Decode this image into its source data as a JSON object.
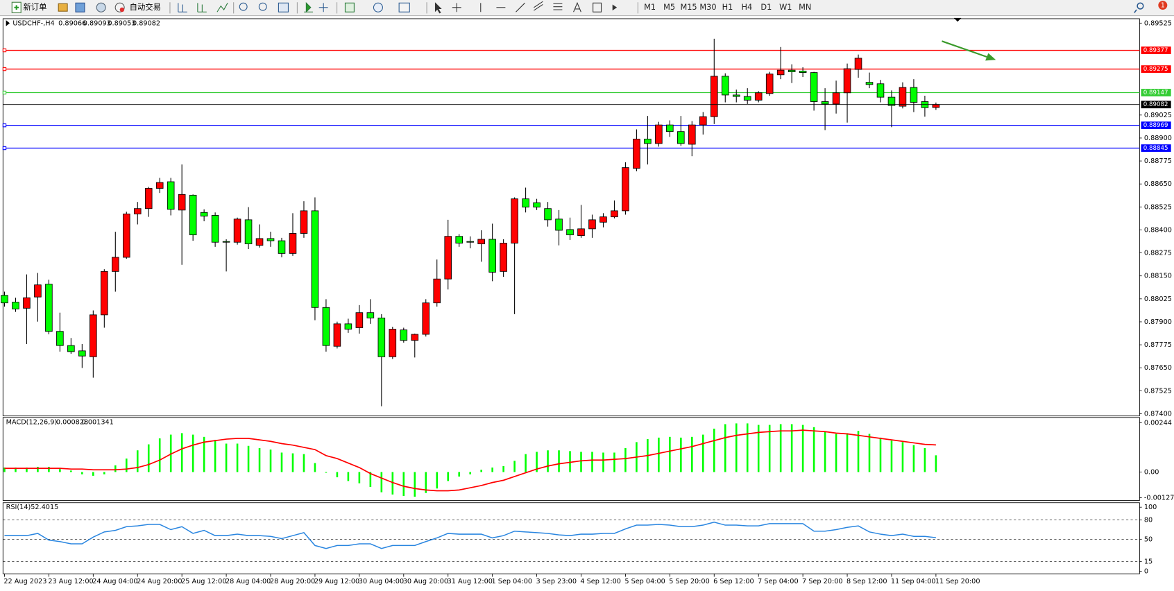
{
  "toolbar": {
    "buttons": [
      "新订单",
      "自动交易"
    ],
    "timeframes": [
      "M1",
      "M5",
      "M15",
      "M30",
      "H1",
      "H4",
      "D1",
      "W1",
      "MN"
    ],
    "notifications": "1"
  },
  "chart_data": [
    {
      "type": "candlestick",
      "title": "USDCHF-,H4",
      "up_color": "#ff0000",
      "down_color": "#00ff00",
      "ylim": [
        0.87388,
        0.89549
      ],
      "yticks": [
        0.89525,
        0.89025,
        {
          "value": 0.889,
          "label": "0.88900"
        },
        0.88775,
        {
          "value": 0.8865,
          "label": "0.88650"
        },
        0.88525,
        {
          "value": 0.884,
          "label": "0.88400"
        },
        0.88275,
        {
          "value": 0.8815,
          "label": "0.88150"
        },
        0.88025,
        {
          "value": 0.879,
          "label": "0.87900"
        },
        0.87775,
        {
          "value": 0.8765,
          "label": "0.87650"
        },
        0.87525,
        {
          "value": 0.874,
          "label": "0.87400"
        }
      ],
      "hlines": [
        {
          "value": 0.89377,
          "color": "#ff0000"
        },
        {
          "value": 0.89275,
          "color": "#ff0000"
        },
        {
          "value": 0.89147,
          "color": "#33cc33"
        },
        {
          "value": 0.88969,
          "color": "#0000ff"
        },
        {
          "value": 0.88845,
          "color": "#0000ff"
        }
      ],
      "categories": [
        "22 Aug 2023",
        null,
        null,
        null,
        "23 Aug 12:00",
        null,
        null,
        null,
        "24 Aug 04:00",
        null,
        null,
        null,
        "24 Aug 20:00",
        null,
        null,
        null,
        "25 Aug 12:00",
        null,
        null,
        null,
        "28 Aug 04:00",
        null,
        null,
        null,
        "28 Aug 20:00",
        null,
        null,
        null,
        "29 Aug 12:00",
        null,
        null,
        null,
        "30 Aug 04:00",
        null,
        null,
        null,
        "30 Aug 20:00",
        null,
        null,
        null,
        "31 Aug 12:00",
        null,
        null,
        null,
        "1 Sep 04:00",
        null,
        null,
        null,
        "3 Sep 23:00",
        null,
        null,
        null,
        "4 Sep 12:00",
        null,
        null,
        null,
        "5 Sep 04:00",
        null,
        null,
        null,
        "5 Sep 20:00",
        null,
        null,
        null,
        "6 Sep 12:00",
        null,
        null,
        null,
        "7 Sep 04:00",
        null,
        null,
        null,
        "7 Sep 20:00",
        null,
        null,
        null,
        "8 Sep 12:00",
        null,
        null,
        null,
        "11 Sep 04:00",
        null,
        null,
        null,
        "11 Sep 20:00"
      ],
      "ohlc": [
        [
          0.88044,
          0.88064,
          0.87983,
          0.88003
        ],
        [
          0.88007,
          0.88031,
          0.87954,
          0.8797
        ],
        [
          0.87974,
          0.88158,
          0.87779,
          0.88031
        ],
        [
          0.88035,
          0.88166,
          0.87901,
          0.88101
        ],
        [
          0.88105,
          0.88129,
          0.87832,
          0.87848
        ],
        [
          0.87848,
          0.8795,
          0.87738,
          0.87771
        ],
        [
          0.87771,
          0.87812,
          0.87726,
          0.87738
        ],
        [
          0.87742,
          0.87779,
          0.87649,
          0.87714
        ],
        [
          0.8771,
          0.87962,
          0.87596,
          0.87938
        ],
        [
          0.87938,
          0.88186,
          0.87868,
          0.88174
        ],
        [
          0.88174,
          0.8839,
          0.88064,
          0.88251
        ],
        [
          0.88251,
          0.88499,
          0.88243,
          0.88487
        ],
        [
          0.88487,
          0.88552,
          0.8843,
          0.88516
        ],
        [
          0.88516,
          0.88634,
          0.88471,
          0.88626
        ],
        [
          0.88626,
          0.88683,
          0.88601,
          0.88658
        ],
        [
          0.88662,
          0.88683,
          0.88479,
          0.88512
        ],
        [
          0.88508,
          0.88756,
          0.8821,
          0.88593
        ],
        [
          0.88589,
          0.88593,
          0.88341,
          0.88373
        ],
        [
          0.88495,
          0.88512,
          0.88447,
          0.88475
        ],
        [
          0.88479,
          0.88495,
          0.88308,
          0.88333
        ],
        [
          0.88337,
          0.88349,
          0.88174,
          0.88333
        ],
        [
          0.88333,
          0.88467,
          0.8832,
          0.88459
        ],
        [
          0.88455,
          0.88524,
          0.88296,
          0.88324
        ],
        [
          0.88316,
          0.8843,
          0.88304,
          0.88353
        ],
        [
          0.88353,
          0.8839,
          0.88308,
          0.88341
        ],
        [
          0.88341,
          0.88357,
          0.88251,
          0.88272
        ],
        [
          0.88272,
          0.88491,
          0.88259,
          0.88381
        ],
        [
          0.88381,
          0.88556,
          0.88357,
          0.88504
        ],
        [
          0.88504,
          0.88577,
          0.87909,
          0.87978
        ],
        [
          0.87978,
          0.88023,
          0.87738,
          0.87771
        ],
        [
          0.87767,
          0.87901,
          0.87755,
          0.87889
        ],
        [
          0.87889,
          0.87917,
          0.8784,
          0.8786
        ],
        [
          0.87868,
          0.87991,
          0.87836,
          0.8795
        ],
        [
          0.8795,
          0.88023,
          0.87889,
          0.87921
        ],
        [
          0.87921,
          0.87942,
          0.87441,
          0.8771
        ],
        [
          0.8771,
          0.87873,
          0.87698,
          0.8786
        ],
        [
          0.87856,
          0.87868,
          0.87787,
          0.87799
        ],
        [
          0.87799,
          0.87836,
          0.87706,
          0.87832
        ],
        [
          0.87832,
          0.88023,
          0.8782,
          0.88003
        ],
        [
          0.88003,
          0.88239,
          0.87983,
          0.88133
        ],
        [
          0.88133,
          0.88455,
          0.88076,
          0.88365
        ],
        [
          0.88365,
          0.88377,
          0.88308,
          0.88328
        ],
        [
          0.88337,
          0.88365,
          0.883,
          0.88333
        ],
        [
          0.88324,
          0.88398,
          0.88227,
          0.88349
        ],
        [
          0.88349,
          0.88434,
          0.88121,
          0.8817
        ],
        [
          0.88174,
          0.88349,
          0.88145,
          0.88328
        ],
        [
          0.88328,
          0.88577,
          0.87942,
          0.88569
        ],
        [
          0.88569,
          0.8863,
          0.88495,
          0.88524
        ],
        [
          0.88548,
          0.88569,
          0.88508,
          0.88524
        ],
        [
          0.88516,
          0.88552,
          0.88418,
          0.88455
        ],
        [
          0.88459,
          0.88508,
          0.88316,
          0.88398
        ],
        [
          0.88402,
          0.88467,
          0.88345,
          0.88373
        ],
        [
          0.88369,
          0.88536,
          0.88357,
          0.88406
        ],
        [
          0.88406,
          0.88483,
          0.88357,
          0.88455
        ],
        [
          0.88442,
          0.88491,
          0.88414,
          0.88471
        ],
        [
          0.88471,
          0.8856,
          0.88463,
          0.88504
        ],
        [
          0.88504,
          0.88768,
          0.88483,
          0.88739
        ],
        [
          0.88735,
          0.88947,
          0.88719,
          0.88894
        ],
        [
          0.88894,
          0.8902,
          0.88756,
          0.8887
        ],
        [
          0.8887,
          0.88988,
          0.88853,
          0.88971
        ],
        [
          0.88971,
          0.88996,
          0.88906,
          0.88935
        ],
        [
          0.88935,
          0.8902,
          0.88857,
          0.8887
        ],
        [
          0.88866,
          0.88992,
          0.88801,
          0.88971
        ],
        [
          0.88971,
          0.89041,
          0.88919,
          0.89016
        ],
        [
          0.89016,
          0.8944,
          0.88976,
          0.89236
        ],
        [
          0.89236,
          0.89252,
          0.89094,
          0.89134
        ],
        [
          0.89134,
          0.89163,
          0.89094,
          0.89126
        ],
        [
          0.89126,
          0.89171,
          0.89085,
          0.89106
        ],
        [
          0.89106,
          0.89155,
          0.89094,
          0.89146
        ],
        [
          0.89142,
          0.8926,
          0.8913,
          0.89248
        ],
        [
          0.89244,
          0.89395,
          0.8922,
          0.89269
        ],
        [
          0.89269,
          0.89301,
          0.89199,
          0.8926
        ],
        [
          0.89264,
          0.89285,
          0.89232,
          0.89256
        ],
        [
          0.89256,
          0.8926,
          0.89049,
          0.89098
        ],
        [
          0.89098,
          0.89171,
          0.88943,
          0.89085
        ],
        [
          0.89085,
          0.89212,
          0.89033,
          0.89146
        ],
        [
          0.89146,
          0.89305,
          0.88984,
          0.89277
        ],
        [
          0.89273,
          0.89354,
          0.89228,
          0.89334
        ],
        [
          0.89203,
          0.89256,
          0.89171,
          0.89191
        ],
        [
          0.89195,
          0.89216,
          0.89094,
          0.89122
        ],
        [
          0.89122,
          0.89159,
          0.88959,
          0.89077
        ],
        [
          0.89073,
          0.89203,
          0.89061,
          0.89175
        ],
        [
          0.89175,
          0.8922,
          0.89041,
          0.89094
        ],
        [
          0.89098,
          0.8913,
          0.89016,
          0.89065
        ],
        [
          0.89066,
          0.89093,
          0.89053,
          0.89082
        ]
      ]
    },
    {
      "type": "macd",
      "title": "MACD(12,26,9)",
      "ylim": [
        -0.001406,
        0.0027
      ],
      "yticks": [
        0.00244,
        {
          "value": 0,
          "label": "0.00"
        },
        -0.001273
      ],
      "histogram": {
        "color": "#00ff00",
        "values": [
          0.000222,
          0.000222,
          0.000222,
          0.000259,
          0.000259,
          0.000148,
          7.4e-05,
          -0.000111,
          -0.000185,
          -0.000111,
          0.000333,
          0.000666,
          0.001073,
          0.001369,
          0.001665,
          0.00185,
          0.001924,
          0.00185,
          0.001739,
          0.001591,
          0.001406,
          0.001406,
          0.001295,
          0.001184,
          0.00111,
          0.000962,
          0.000925,
          0.000888,
          0.000444,
          -3.7e-05,
          -0.000259,
          -0.000444,
          -0.000555,
          -0.00074,
          -0.000999,
          -0.00111,
          -0.001184,
          -0.001221,
          -0.001036,
          -0.000814,
          -0.000444,
          -0.000222,
          -0.000111,
          0.000111,
          0.000222,
          0.000296,
          0.000555,
          0.000888,
          0.000999,
          0.001073,
          0.001073,
          0.001036,
          0.000999,
          0.000999,
          0.000962,
          0.000962,
          0.001184,
          0.00148,
          0.001628,
          0.001702,
          0.001739,
          0.001702,
          0.001739,
          0.00185,
          0.002146,
          0.002368,
          0.002405,
          0.002405,
          0.002331,
          0.002331,
          0.002368,
          0.002368,
          0.002331,
          0.00222,
          0.001998,
          0.001887,
          0.001924,
          0.002035,
          0.001887,
          0.001702,
          0.001554,
          0.00148,
          0.001332,
          0.001184,
          0.000828
        ]
      },
      "signal": {
        "color": "#ff0000",
        "values": [
          0.000185,
          0.000185,
          0.000185,
          0.000185,
          0.000185,
          0.000185,
          0.000148,
          0.000148,
          0.000111,
          0.000111,
          0.000111,
          0.000148,
          0.000222,
          0.00037,
          0.000592,
          0.000888,
          0.001147,
          0.001332,
          0.00148,
          0.001554,
          0.001628,
          0.001665,
          0.001665,
          0.001591,
          0.001517,
          0.001406,
          0.001332,
          0.001221,
          0.00111,
          0.000814,
          0.000666,
          0.000444,
          0.000222,
          -7.4e-05,
          -0.000296,
          -0.000518,
          -0.000703,
          -0.000814,
          -0.000888,
          -0.000925,
          -0.000925,
          -0.000888,
          -0.000777,
          -0.000666,
          -0.000518,
          -0.000407,
          -0.000222,
          -3.7e-05,
          0.000148,
          0.000296,
          0.000407,
          0.000481,
          0.000555,
          0.000592,
          0.000592,
          0.000629,
          0.000666,
          0.00074,
          0.000814,
          0.000925,
          0.001036,
          0.001147,
          0.001258,
          0.001406,
          0.001554,
          0.001702,
          0.001813,
          0.001887,
          0.001961,
          0.001998,
          0.002035,
          0.002035,
          0.002072,
          0.002035,
          0.001998,
          0.001924,
          0.001887,
          0.001813,
          0.001739,
          0.001665,
          0.001591,
          0.001517,
          0.001443,
          0.001369,
          0.001341
        ]
      }
    },
    {
      "type": "line",
      "title": "RSI(14)",
      "color": "#2a86e0",
      "ylim": [
        -4,
        107
      ],
      "yticks": [
        100,
        80,
        50,
        15,
        0
      ],
      "values": [
        55.6,
        55.6,
        55.6,
        59.1,
        48.6,
        46.3,
        42.8,
        42.8,
        53.3,
        61.4,
        63.8,
        69.6,
        70.8,
        73.1,
        73.1,
        65.0,
        69.6,
        59.1,
        63.8,
        55.6,
        55.6,
        57.9,
        55.6,
        55.6,
        54.4,
        50.9,
        55.6,
        60.3,
        40.2,
        35.5,
        40.2,
        40.2,
        42.8,
        42.8,
        35.5,
        40.2,
        40.2,
        40.2,
        46.3,
        52.1,
        59.1,
        57.9,
        57.9,
        57.9,
        52.1,
        55.6,
        62.6,
        61.4,
        60.3,
        59.1,
        56.8,
        55.6,
        57.9,
        57.9,
        59.1,
        59.1,
        66.1,
        72.0,
        72.0,
        73.1,
        72.0,
        69.6,
        69.6,
        72.0,
        76.6,
        72.0,
        72.0,
        70.8,
        70.8,
        74.3,
        74.3,
        74.3,
        74.3,
        62.6,
        62.6,
        65.0,
        68.5,
        70.8,
        61.4,
        57.9,
        55.6,
        57.9,
        54.4,
        54.4,
        52.4015
      ]
    }
  ]
}
